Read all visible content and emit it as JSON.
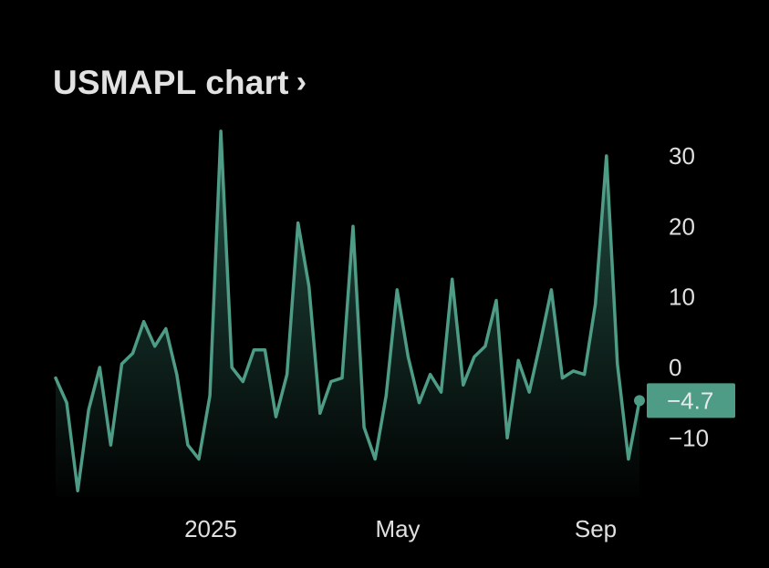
{
  "header": {
    "title": "USMAPL chart",
    "chevron": "›"
  },
  "colors": {
    "background": "#000000",
    "line": "#4e9c86",
    "fill_top": "#2f6b5a",
    "badge": "#4e9c86",
    "text": "#e0e0e0"
  },
  "chart_data": {
    "type": "area",
    "ylim": [
      -18,
      36
    ],
    "y_ticks": [
      30,
      20,
      10,
      0,
      -10
    ],
    "y_tick_labels": [
      "30",
      "20",
      "10",
      "0",
      "−10"
    ],
    "x_tick_labels": [
      "2025",
      "May",
      "Sep"
    ],
    "last_value": -4.7,
    "last_value_label": "−4.7",
    "series": [
      {
        "values": [
          -1.5,
          -5,
          -17.5,
          -6,
          0,
          -11,
          0.5,
          2,
          6.5,
          3,
          5.5,
          -1,
          -11,
          -13,
          -4,
          33.5,
          0,
          -2,
          2.5,
          2.5,
          -7,
          -1,
          20.5,
          11.5,
          -6.5,
          -2,
          -1.5,
          20,
          -8.5,
          -13,
          -4,
          11,
          1.5,
          -5,
          -1,
          -3.5,
          12.5,
          -2.5,
          1.5,
          3,
          9.5,
          -10,
          1,
          -3.5,
          3.5,
          11,
          -1.5,
          -0.5,
          -1,
          9,
          30,
          0.5,
          -13,
          -4.7
        ]
      }
    ]
  }
}
